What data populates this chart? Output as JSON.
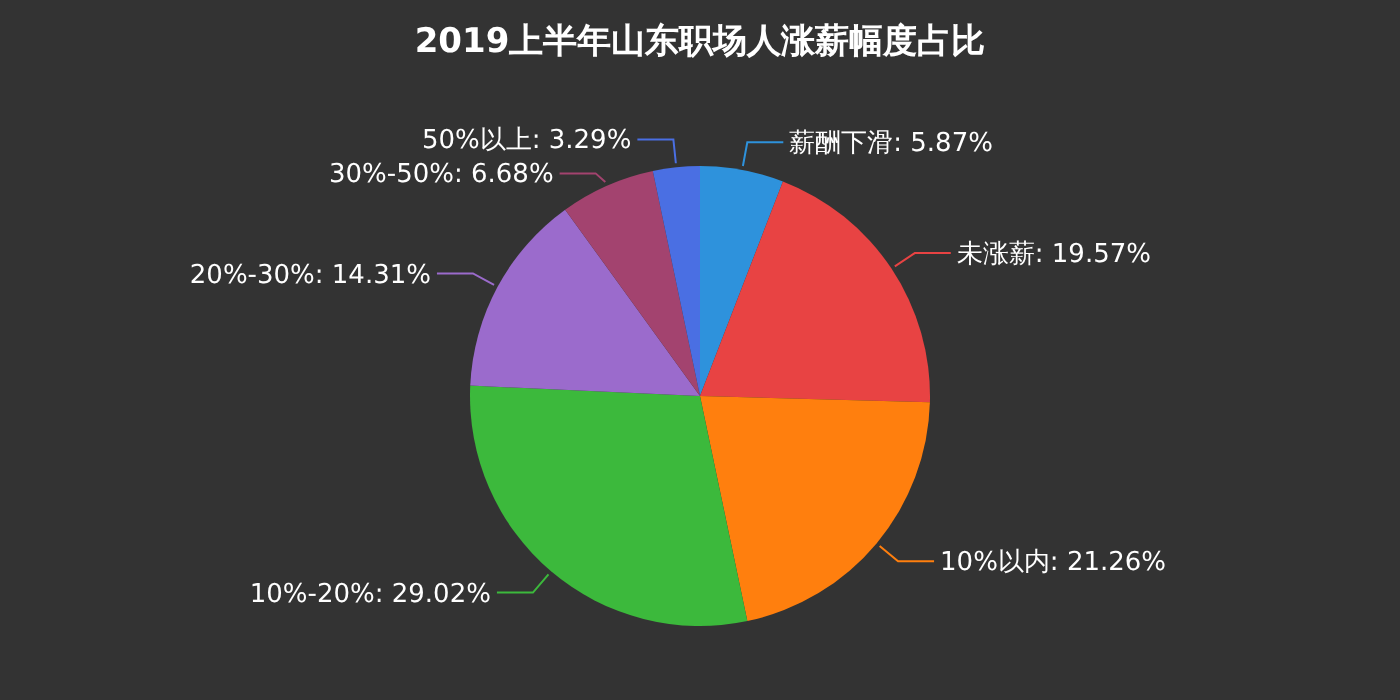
{
  "chart_data": {
    "type": "pie",
    "title": "2019上半年山东职场人涨薪幅度占比",
    "categories": [
      "薪酬下滑",
      "未涨薪",
      "10%以内",
      "10%-20%",
      "20%-30%",
      "30%-50%",
      "50%以上"
    ],
    "values": [
      5.87,
      19.57,
      21.26,
      29.02,
      14.31,
      6.68,
      3.29
    ],
    "colors": [
      "#2e92dc",
      "#e84343",
      "#ff7f0e",
      "#3cb93c",
      "#9b6bcc",
      "#a3436f",
      "#4a6fe3"
    ],
    "value_labels": [
      "5.87%",
      "19.57%",
      "21.26%",
      "29.02%",
      "14.31%",
      "6.68%",
      "3.29%"
    ]
  }
}
